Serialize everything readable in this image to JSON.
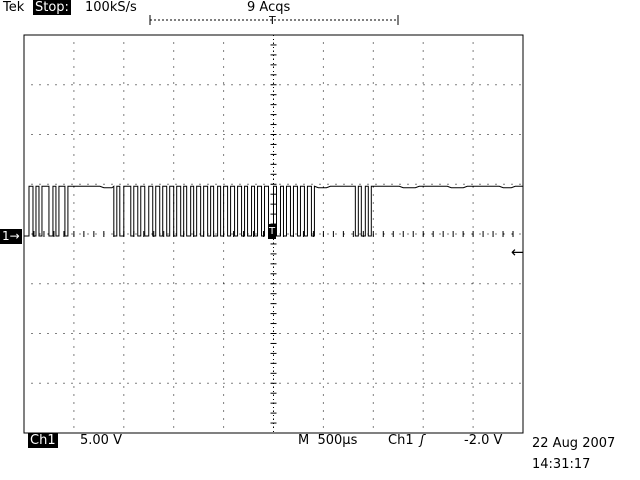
{
  "header": {
    "brand": "Tek",
    "run_state": "Stop:",
    "sample_rate": "100kS/s",
    "acquisitions": "9 Acqs"
  },
  "markers": {
    "channel_ground": "1→",
    "trigger_position": "T",
    "trigger_level_arrow": "←"
  },
  "footer": {
    "channel": "Ch1",
    "volts_per_div": "5.00 V",
    "timebase": "M  500µs",
    "trigger_source": "Ch1",
    "trigger_slope_symbol": "ʃ",
    "trigger_level": "-2.0 V",
    "date": "22 Aug 2007",
    "time": "14:31:17"
  },
  "waveform": {
    "channel": "Ch1",
    "time_per_div_us": 500,
    "volts_per_div": 5.0,
    "high_level_div": 1.0,
    "low_level_div": 0.0,
    "color": "#000000",
    "transitions_div": [
      [
        0.1,
        1
      ],
      [
        0.18,
        0
      ],
      [
        0.24,
        1
      ],
      [
        0.3,
        0
      ],
      [
        0.36,
        1
      ],
      [
        0.5,
        0
      ],
      [
        0.58,
        1
      ],
      [
        0.64,
        0
      ],
      [
        0.7,
        1
      ],
      [
        0.82,
        0
      ],
      [
        0.88,
        1
      ],
      [
        1.8,
        0
      ],
      [
        1.86,
        1
      ],
      [
        1.92,
        0
      ],
      [
        2.0,
        1
      ],
      [
        2.14,
        0
      ],
      [
        2.2,
        1
      ],
      [
        2.28,
        0
      ],
      [
        2.34,
        1
      ],
      [
        2.42,
        0
      ],
      [
        2.5,
        1
      ],
      [
        2.58,
        0
      ],
      [
        2.64,
        1
      ],
      [
        2.72,
        0
      ],
      [
        2.78,
        1
      ],
      [
        2.86,
        0
      ],
      [
        2.92,
        1
      ],
      [
        3.0,
        0
      ],
      [
        3.06,
        1
      ],
      [
        3.14,
        0
      ],
      [
        3.2,
        1
      ],
      [
        3.26,
        0
      ],
      [
        3.34,
        1
      ],
      [
        3.4,
        0
      ],
      [
        3.46,
        1
      ],
      [
        3.54,
        0
      ],
      [
        3.6,
        1
      ],
      [
        3.68,
        0
      ],
      [
        3.74,
        1
      ],
      [
        3.8,
        0
      ],
      [
        3.88,
        1
      ],
      [
        3.94,
        0
      ],
      [
        4.0,
        1
      ],
      [
        4.08,
        0
      ],
      [
        4.14,
        1
      ],
      [
        4.22,
        0
      ],
      [
        4.28,
        1
      ],
      [
        4.36,
        0
      ],
      [
        4.42,
        1
      ],
      [
        4.48,
        0
      ],
      [
        4.56,
        1
      ],
      [
        4.62,
        0
      ],
      [
        4.68,
        1
      ],
      [
        4.76,
        0
      ],
      [
        4.82,
        1
      ],
      [
        4.9,
        0
      ],
      [
        5.0,
        1
      ],
      [
        5.06,
        0
      ],
      [
        5.14,
        1
      ],
      [
        5.2,
        0
      ],
      [
        5.26,
        1
      ],
      [
        5.34,
        0
      ],
      [
        5.4,
        1
      ],
      [
        5.48,
        0
      ],
      [
        5.54,
        1
      ],
      [
        5.62,
        0
      ],
      [
        5.68,
        1
      ],
      [
        5.76,
        0
      ],
      [
        5.82,
        1
      ],
      [
        6.64,
        0
      ],
      [
        6.7,
        1
      ],
      [
        6.76,
        0
      ],
      [
        6.84,
        1
      ],
      [
        6.9,
        0
      ],
      [
        6.96,
        1
      ]
    ]
  }
}
